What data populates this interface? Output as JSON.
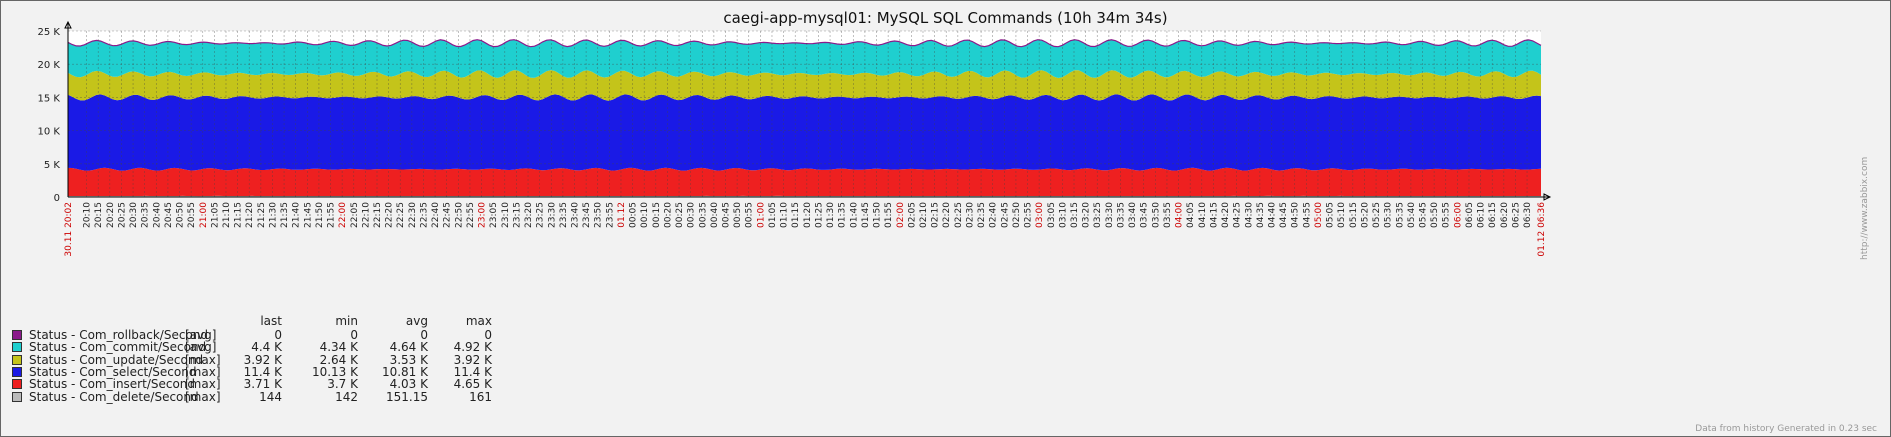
{
  "chart_data": {
    "type": "area",
    "stacked": true,
    "title": "caegi-app-mysql01: MySQL SQL Commands (10h 34m 34s)",
    "y_ticks": [
      "0",
      "5 K",
      "10 K",
      "15 K",
      "20 K",
      "25 K"
    ],
    "ylim": [
      0,
      25000
    ],
    "grid": true,
    "x_start_label": "30.11 20:02",
    "x_end_label": "01.12 06:36",
    "x_tick_labels": [
      "20:10",
      "20:15",
      "20:20",
      "20:25",
      "20:30",
      "20:35",
      "20:40",
      "20:45",
      "20:50",
      "20:55",
      "21:00",
      "21:05",
      "21:10",
      "21:15",
      "21:20",
      "21:25",
      "21:30",
      "21:35",
      "21:40",
      "21:45",
      "21:50",
      "21:55",
      "22:00",
      "22:05",
      "22:10",
      "22:15",
      "22:20",
      "22:25",
      "22:30",
      "22:35",
      "22:40",
      "22:45",
      "22:50",
      "22:55",
      "23:00",
      "23:05",
      "23:10",
      "23:15",
      "23:20",
      "23:25",
      "23:30",
      "23:35",
      "23:40",
      "23:45",
      "23:50",
      "23:55",
      "01.12",
      "00:05",
      "00:10",
      "00:15",
      "00:20",
      "00:25",
      "00:30",
      "00:35",
      "00:40",
      "00:45",
      "00:50",
      "00:55",
      "01:00",
      "01:05",
      "01:10",
      "01:15",
      "01:20",
      "01:25",
      "01:30",
      "01:35",
      "01:40",
      "01:45",
      "01:50",
      "01:55",
      "02:00",
      "02:05",
      "02:10",
      "02:15",
      "02:20",
      "02:25",
      "02:30",
      "02:35",
      "02:40",
      "02:45",
      "02:50",
      "02:55",
      "03:00",
      "03:05",
      "03:10",
      "03:15",
      "03:20",
      "03:25",
      "03:30",
      "03:35",
      "03:40",
      "03:45",
      "03:50",
      "03:55",
      "04:00",
      "04:05",
      "04:10",
      "04:15",
      "04:20",
      "04:25",
      "04:30",
      "04:35",
      "04:40",
      "04:45",
      "04:50",
      "04:55",
      "05:00",
      "05:05",
      "05:10",
      "05:15",
      "05:20",
      "05:25",
      "05:30",
      "05:35",
      "05:40",
      "05:45",
      "05:50",
      "05:55",
      "06:00",
      "06:05",
      "06:10",
      "06:15",
      "06:20",
      "06:25",
      "06:30"
    ],
    "highlight_ticks": [
      "21:00",
      "22:00",
      "23:00",
      "01.12",
      "01:00",
      "02:00",
      "03:00",
      "04:00",
      "05:00",
      "06:00"
    ],
    "legend_columns": [
      "last",
      "min",
      "avg",
      "max"
    ],
    "series": [
      {
        "name": "Status - Com_rollback/Second",
        "func": "[avg]",
        "color": "#8B1A8B",
        "last": "0",
        "min": "0",
        "avg": "0",
        "max": "0",
        "base": 0,
        "amp": 0
      },
      {
        "name": "Status - Com_commit/Second",
        "func": "[avg]",
        "color": "#1FCFCF",
        "last": "4.4 K",
        "min": "4.34 K",
        "avg": "4.64 K",
        "max": "4.92 K",
        "base": 4640,
        "amp": 280
      },
      {
        "name": "Status - Com_update/Second",
        "func": "[max]",
        "color": "#C4C41A",
        "last": "3.92 K",
        "min": "2.64 K",
        "avg": "3.53 K",
        "max": "3.92 K",
        "base": 3530,
        "amp": 450
      },
      {
        "name": "Status - Com_select/Second",
        "func": "[max]",
        "color": "#1A1AE6",
        "last": "11.4 K",
        "min": "10.13 K",
        "avg": "10.81 K",
        "max": "11.4 K",
        "base": 10810,
        "amp": 400
      },
      {
        "name": "Status - Com_insert/Second",
        "func": "[max]",
        "color": "#EE2020",
        "last": "3.71 K",
        "min": "3.7 K",
        "avg": "4.03 K",
        "max": "4.65 K",
        "base": 4030,
        "amp": 220
      },
      {
        "name": "Status - Com_delete/Second",
        "func": "[max]",
        "color": "#BBBBBB",
        "last": "144",
        "min": "142",
        "avg": "151.15",
        "max": "161",
        "base": 151,
        "amp": 8
      }
    ]
  },
  "footer": "Data from history Generated in 0.23 sec",
  "side_url": "http://www.zabbix.com"
}
